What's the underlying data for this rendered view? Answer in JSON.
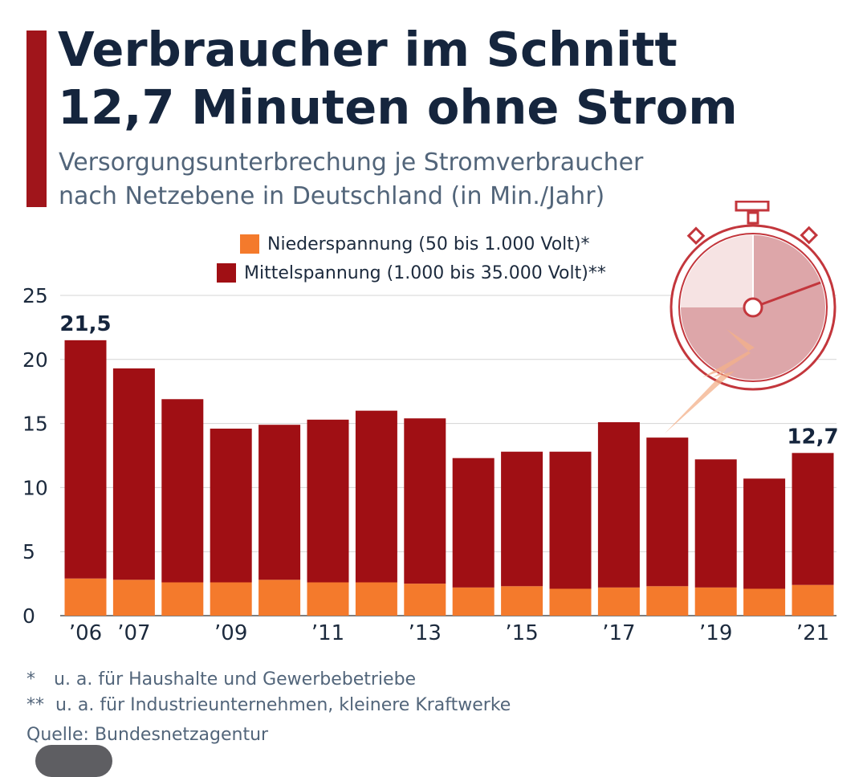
{
  "title_lines": [
    "Verbraucher im Schnitt",
    "12,7 Minuten ohne Strom"
  ],
  "subtitle_lines": [
    "Versorgungsunterbrechung je Stromverbraucher",
    "nach Netzebene in Deutschland (in Min./Jahr)"
  ],
  "colors": {
    "accent": "#a0151b",
    "niederspannung": "#f47a2c",
    "mittelspannung": "#a00f14",
    "gridline": "#d4d4d4",
    "title": "#15253d",
    "subtitle": "#52657a",
    "stopwatch": "#c3363c"
  },
  "footnotes": {
    "star1_mark": "*",
    "star1_text": "u. a. für Haushalte und Gewerbebetriebe",
    "star2_mark": "**",
    "star2_text": "u. a. für Industrieunternehmen, kleinere Kraftwerke",
    "source": "Quelle: Bundesnetzagentur"
  },
  "decoration": {
    "stopwatch": "stopwatch-icon"
  },
  "chart_data": {
    "type": "bar",
    "stacked": true,
    "title": "Verbraucher im Schnitt 12,7 Minuten ohne Strom",
    "xlabel": "",
    "ylabel": "",
    "ylim": [
      0,
      25
    ],
    "yticks": [
      0,
      5,
      10,
      15,
      20,
      25
    ],
    "grid": true,
    "legend_position": "top",
    "categories": [
      "2006",
      "2007",
      "2008",
      "2009",
      "2010",
      "2011",
      "2012",
      "2013",
      "2014",
      "2015",
      "2016",
      "2017",
      "2018",
      "2019",
      "2020",
      "2021"
    ],
    "x_tick_labels": [
      "’06",
      "’07",
      "",
      "’09",
      "",
      "’11",
      "",
      "’13",
      "",
      "’15",
      "",
      "’17",
      "",
      "’19",
      "",
      "’21"
    ],
    "series": [
      {
        "name": "Niederspannung (50 bis 1.000 Volt)*",
        "values": [
          2.9,
          2.8,
          2.6,
          2.6,
          2.8,
          2.6,
          2.6,
          2.5,
          2.2,
          2.3,
          2.1,
          2.2,
          2.3,
          2.2,
          2.1,
          2.4
        ]
      },
      {
        "name": "Mittelspannung (1.000 bis 35.000 Volt)**",
        "values": [
          18.6,
          16.5,
          14.3,
          12.0,
          12.1,
          12.7,
          13.4,
          12.9,
          10.1,
          10.5,
          10.7,
          12.9,
          11.6,
          10.0,
          8.6,
          10.3
        ]
      }
    ],
    "totals": [
      21.5,
      19.3,
      16.9,
      14.6,
      14.9,
      15.3,
      16.0,
      15.4,
      12.3,
      12.8,
      12.8,
      15.1,
      13.9,
      12.2,
      10.7,
      12.7
    ],
    "data_labels": [
      {
        "index": 0,
        "text": "21,5"
      },
      {
        "index": 15,
        "text": "12,7"
      }
    ]
  }
}
